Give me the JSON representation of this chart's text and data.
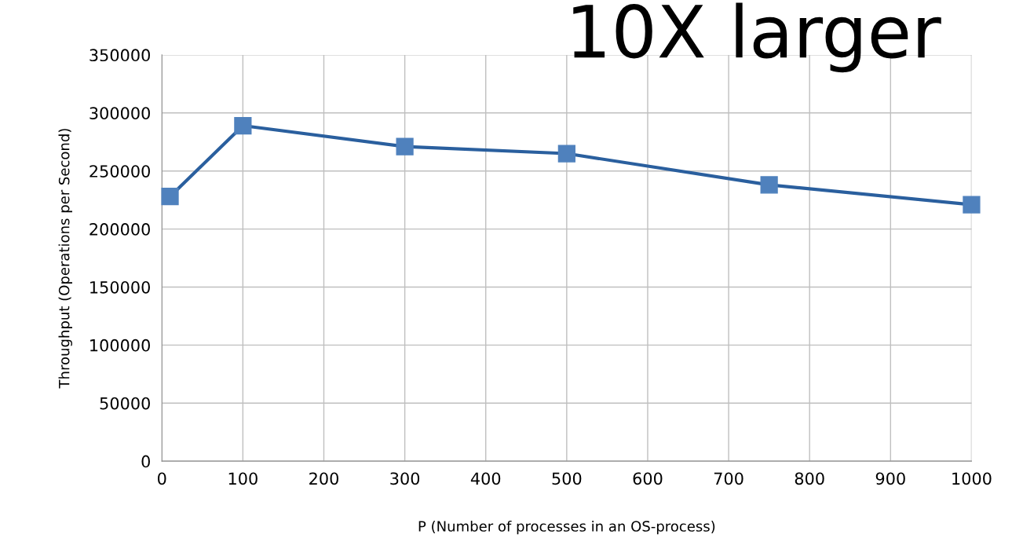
{
  "chart_data": {
    "type": "line",
    "xlabel": "P (Number of processes in an OS-process)",
    "ylabel": "Throughput (Operations per Second)",
    "annotations": [
      "10X larger"
    ],
    "x": [
      10,
      100,
      300,
      500,
      750,
      1000
    ],
    "series": [
      {
        "color": "#2a5f9e",
        "values": [
          228000,
          289000,
          271000,
          265000,
          238000,
          221000
        ]
      }
    ],
    "xlim": [
      0,
      1000
    ],
    "xticks": [
      0,
      100,
      200,
      300,
      400,
      500,
      600,
      700,
      800,
      900,
      1000
    ],
    "ylim": [
      0,
      350000
    ],
    "yticks": [
      0,
      50000,
      100000,
      150000,
      200000,
      250000,
      300000,
      350000
    ],
    "grid": true,
    "marker": "square",
    "line_style": "solid"
  }
}
